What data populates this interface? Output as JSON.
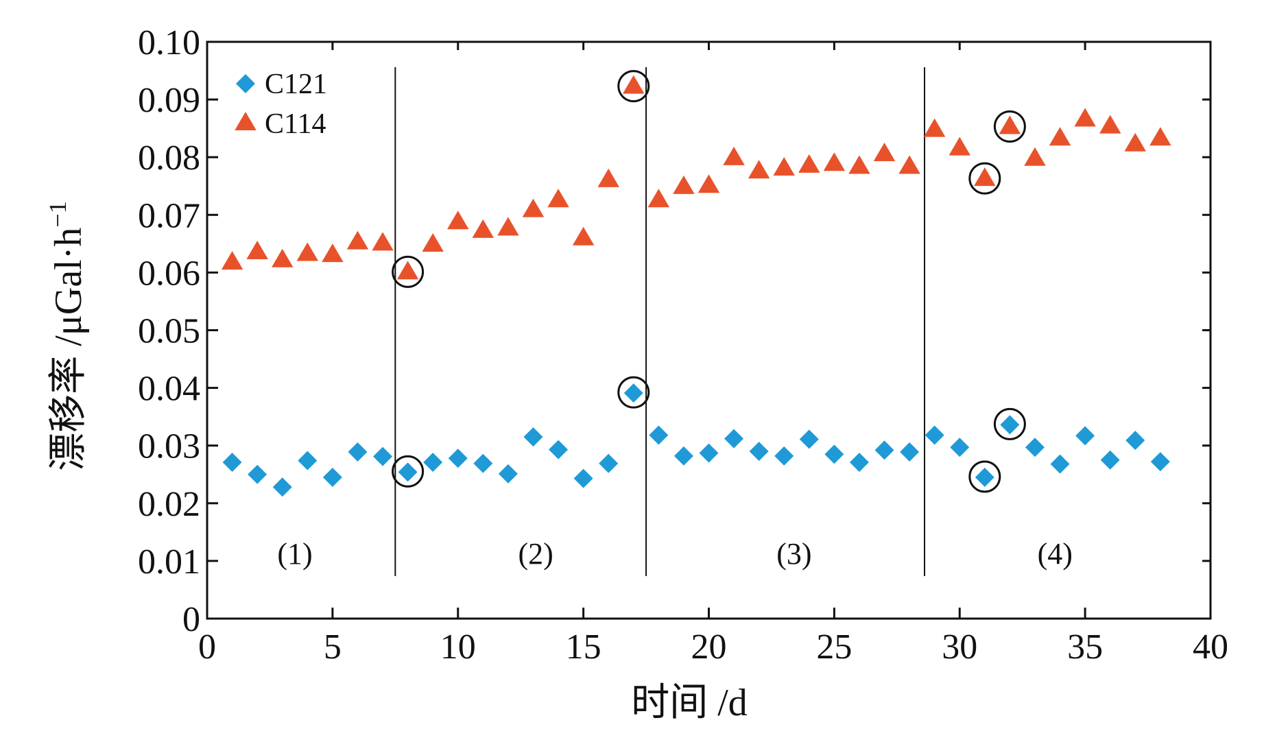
{
  "chart_data": {
    "type": "scatter",
    "xlabel": "时间 /d",
    "ylabel": "漂移率 /μGal·h",
    "ylabel_sup": "−1",
    "xlim": [
      0,
      40
    ],
    "ylim": [
      0,
      0.1
    ],
    "xticks": [
      "0",
      "5",
      "10",
      "15",
      "20",
      "25",
      "30",
      "35",
      "40"
    ],
    "yticks": [
      "0",
      "0.01",
      "0.02",
      "0.03",
      "0.04",
      "0.05",
      "0.06",
      "0.07",
      "0.08",
      "0.09",
      "0.10"
    ],
    "grid": false,
    "legend_position": "top-left",
    "series": [
      {
        "name": "C121",
        "marker": "diamond",
        "color": "#1f9ad6",
        "x": [
          1,
          2,
          3,
          4,
          5,
          6,
          7,
          8,
          9,
          10,
          11,
          12,
          13,
          14,
          15,
          16,
          17,
          18,
          19,
          20,
          21,
          22,
          23,
          24,
          25,
          26,
          27,
          28,
          29,
          30,
          31,
          32,
          33,
          34,
          35,
          36,
          37,
          38
        ],
        "y": [
          0.0271,
          0.025,
          0.0228,
          0.0274,
          0.0245,
          0.0289,
          0.0281,
          0.0254,
          0.0271,
          0.0278,
          0.0269,
          0.0251,
          0.0315,
          0.0293,
          0.0243,
          0.0269,
          0.0391,
          0.0318,
          0.0282,
          0.0287,
          0.0312,
          0.029,
          0.0282,
          0.0311,
          0.0285,
          0.0271,
          0.0292,
          0.0289,
          0.0318,
          0.0297,
          0.0245,
          0.0336,
          0.0297,
          0.0268,
          0.0317,
          0.0275,
          0.0309,
          0.0272
        ]
      },
      {
        "name": "C114",
        "marker": "triangle",
        "color": "#e8522b",
        "x": [
          1,
          2,
          3,
          4,
          5,
          6,
          7,
          8,
          9,
          10,
          11,
          12,
          13,
          14,
          15,
          16,
          17,
          18,
          19,
          20,
          21,
          22,
          23,
          24,
          25,
          26,
          27,
          28,
          29,
          30,
          31,
          32,
          33,
          34,
          35,
          36,
          37,
          38
        ],
        "y": [
          0.0617,
          0.0635,
          0.0621,
          0.0632,
          0.063,
          0.0652,
          0.065,
          0.06,
          0.0648,
          0.0687,
          0.0672,
          0.0676,
          0.0708,
          0.0725,
          0.0659,
          0.076,
          0.0922,
          0.0725,
          0.0748,
          0.075,
          0.0798,
          0.0775,
          0.078,
          0.0785,
          0.0788,
          0.0783,
          0.0805,
          0.0783,
          0.0847,
          0.0815,
          0.0762,
          0.0852,
          0.0797,
          0.0832,
          0.0865,
          0.0853,
          0.0822,
          0.0832
        ]
      }
    ],
    "highlighted": [
      {
        "series": "C114",
        "x": 8,
        "y": 0.06
      },
      {
        "series": "C114",
        "x": 17,
        "y": 0.0922
      },
      {
        "series": "C114",
        "x": 31,
        "y": 0.0762
      },
      {
        "series": "C114",
        "x": 32,
        "y": 0.0852
      },
      {
        "series": "C121",
        "x": 8,
        "y": 0.0254
      },
      {
        "series": "C121",
        "x": 17,
        "y": 0.0391
      },
      {
        "series": "C121",
        "x": 31,
        "y": 0.0245
      },
      {
        "series": "C121",
        "x": 32,
        "y": 0.0336
      }
    ],
    "dividers_x": [
      7.5,
      17.5,
      28.6
    ],
    "regions": [
      {
        "label": "(1)",
        "x": 3.5
      },
      {
        "label": "(2)",
        "x": 13.1
      },
      {
        "label": "(3)",
        "x": 23.4
      },
      {
        "label": "(4)",
        "x": 33.8
      }
    ]
  }
}
